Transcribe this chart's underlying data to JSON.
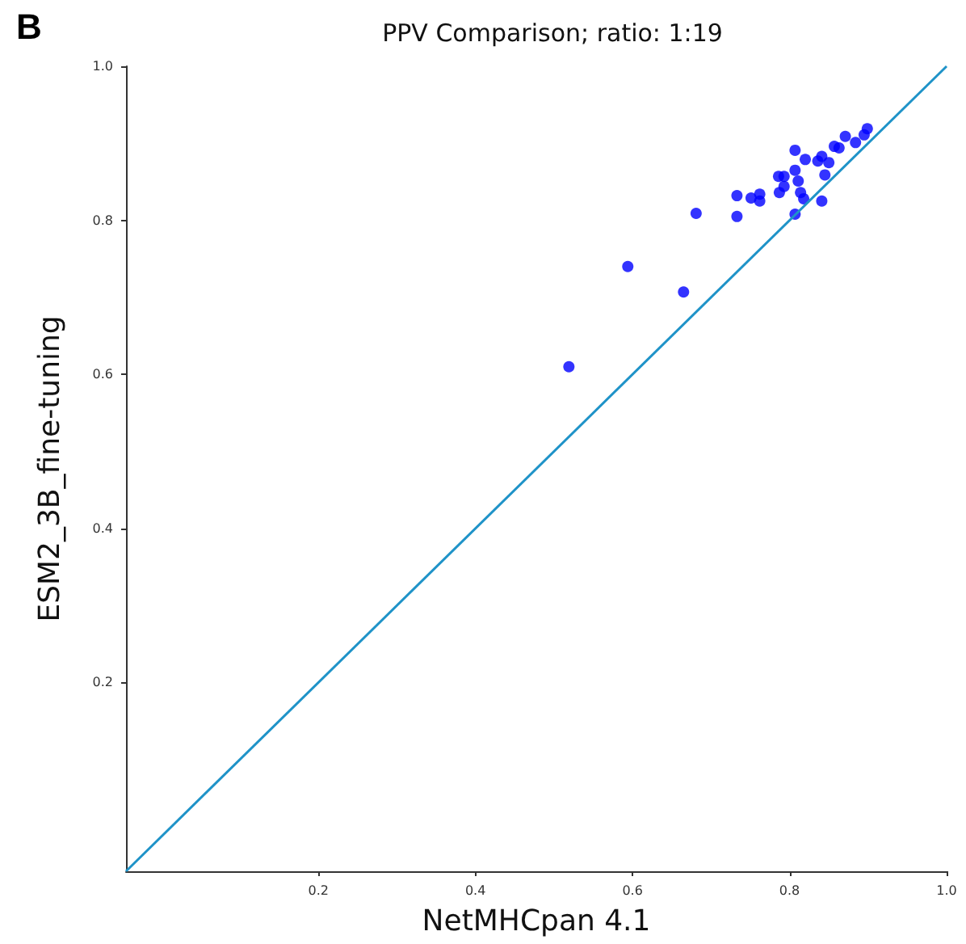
{
  "chart_data": {
    "type": "scatter",
    "title": "PPV Comparison; ratio: 1:19",
    "xlabel": "NetMHCpan 4.1",
    "ylabel": "ESM2_3B_fine-tuning",
    "annotations": [
      "B"
    ],
    "xlim": [
      -0.045,
      1.0
    ],
    "ylim": [
      -0.045,
      1.0
    ],
    "xticks": [
      0.2,
      0.4,
      0.6,
      0.8,
      {
        "value": 1,
        "label": "1.0"
      }
    ],
    "yticks": [
      0.2,
      0.4,
      0.6,
      0.8,
      {
        "value": 1,
        "label": "1.0"
      }
    ],
    "grid": false,
    "series": [
      {
        "marker": "circle",
        "color": "#0000ff",
        "x": [
          0.519,
          0.594,
          0.665,
          0.681,
          0.733,
          0.733,
          0.751,
          0.762,
          0.762,
          0.786,
          0.793,
          0.787,
          0.793,
          0.807,
          0.807,
          0.811,
          0.814,
          0.818,
          0.807,
          0.82,
          0.836,
          0.841,
          0.845,
          0.841,
          0.85,
          0.857,
          0.863,
          0.871,
          0.884,
          0.895,
          0.899
        ],
        "values": [
          0.61,
          0.74,
          0.707,
          0.809,
          0.805,
          0.832,
          0.829,
          0.834,
          0.825,
          0.857,
          0.857,
          0.836,
          0.844,
          0.891,
          0.865,
          0.851,
          0.836,
          0.828,
          0.808,
          0.879,
          0.877,
          0.883,
          0.859,
          0.825,
          0.875,
          0.896,
          0.894,
          0.909,
          0.901,
          0.911,
          0.919
        ]
      },
      {
        "type": "line",
        "color": "#1f93c8",
        "x": [
          -0.045,
          1.0
        ],
        "values": [
          -0.045,
          1.0
        ]
      }
    ]
  }
}
